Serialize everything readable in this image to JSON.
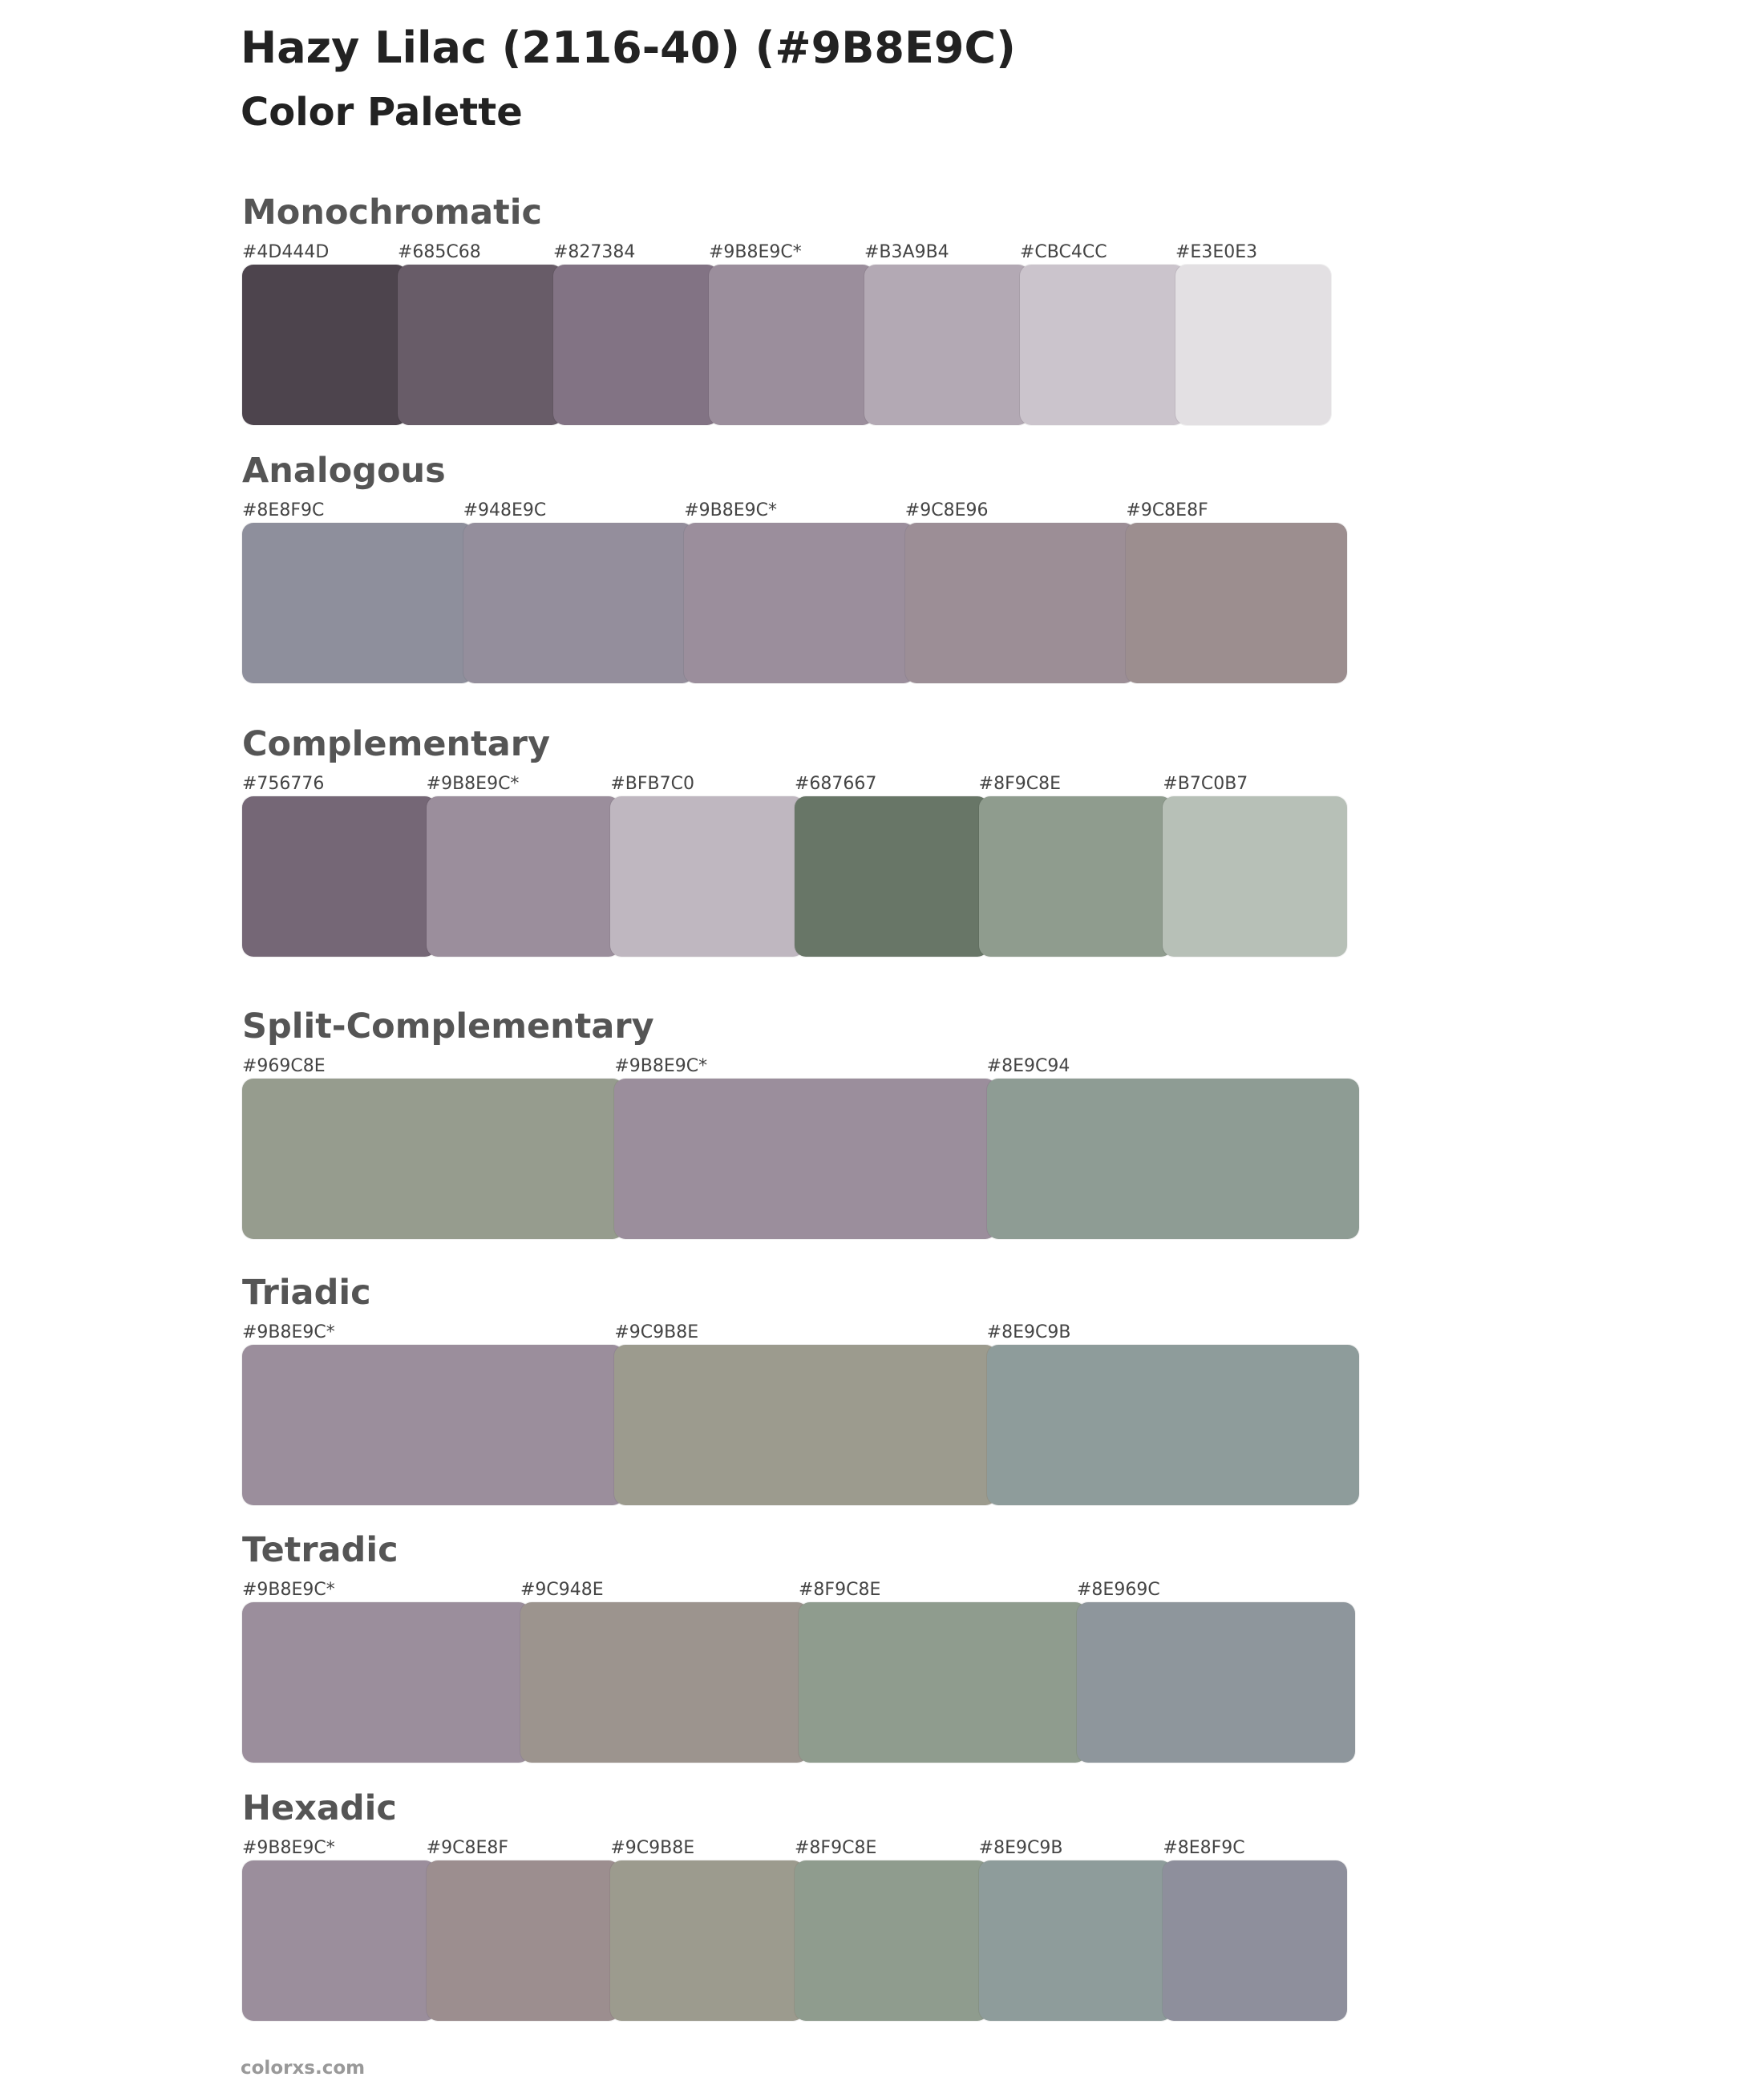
{
  "header": {
    "title": "Hazy Lilac (2116-40) (#9B8E9C)",
    "subtitle": "Color Palette"
  },
  "sections": [
    {
      "title": "Monochromatic",
      "swatches": [
        {
          "label": "#4D444D",
          "color": "#4D444D"
        },
        {
          "label": "#685C68",
          "color": "#685C68"
        },
        {
          "label": "#827384",
          "color": "#827384"
        },
        {
          "label": "#9B8E9C*",
          "color": "#9B8E9C"
        },
        {
          "label": "#B3A9B4",
          "color": "#B3A9B4"
        },
        {
          "label": "#CBC4CC",
          "color": "#CBC4CC"
        },
        {
          "label": "#E3E0E3",
          "color": "#E3E0E3"
        }
      ]
    },
    {
      "title": "Analogous",
      "swatches": [
        {
          "label": "#8E8F9C",
          "color": "#8E8F9C"
        },
        {
          "label": "#948E9C",
          "color": "#948E9C"
        },
        {
          "label": "#9B8E9C*",
          "color": "#9B8E9C"
        },
        {
          "label": "#9C8E96",
          "color": "#9C8E96"
        },
        {
          "label": "#9C8E8F",
          "color": "#9C8E8F"
        }
      ]
    },
    {
      "title": "Complementary",
      "swatches": [
        {
          "label": "#756776",
          "color": "#756776"
        },
        {
          "label": "#9B8E9C*",
          "color": "#9B8E9C"
        },
        {
          "label": "#BFB7C0",
          "color": "#BFB7C0"
        },
        {
          "label": "#687667",
          "color": "#687667"
        },
        {
          "label": "#8F9C8E",
          "color": "#8F9C8E"
        },
        {
          "label": "#B7C0B7",
          "color": "#B7C0B7"
        }
      ]
    },
    {
      "title": "Split-Complementary",
      "swatches": [
        {
          "label": "#969C8E",
          "color": "#969C8E"
        },
        {
          "label": "#9B8E9C*",
          "color": "#9B8E9C"
        },
        {
          "label": "#8E9C94",
          "color": "#8E9C94"
        }
      ]
    },
    {
      "title": "Triadic",
      "swatches": [
        {
          "label": "#9B8E9C*",
          "color": "#9B8E9C"
        },
        {
          "label": "#9C9B8E",
          "color": "#9C9B8E"
        },
        {
          "label": "#8E9C9B",
          "color": "#8E9C9B"
        }
      ]
    },
    {
      "title": "Tetradic",
      "swatches": [
        {
          "label": "#9B8E9C*",
          "color": "#9B8E9C"
        },
        {
          "label": "#9C948E",
          "color": "#9C948E"
        },
        {
          "label": "#8F9C8E",
          "color": "#8F9C8E"
        },
        {
          "label": "#8E969C",
          "color": "#8E969C"
        }
      ]
    },
    {
      "title": "Hexadic",
      "swatches": [
        {
          "label": "#9B8E9C*",
          "color": "#9B8E9C"
        },
        {
          "label": "#9C8E8F",
          "color": "#9C8E8F"
        },
        {
          "label": "#9C9B8E",
          "color": "#9C9B8E"
        },
        {
          "label": "#8F9C8E",
          "color": "#8F9C8E"
        },
        {
          "label": "#8E9C9B",
          "color": "#8E9C9B"
        },
        {
          "label": "#8E8F9C",
          "color": "#8E8F9C"
        }
      ]
    }
  ],
  "footer": "colorxs.com"
}
